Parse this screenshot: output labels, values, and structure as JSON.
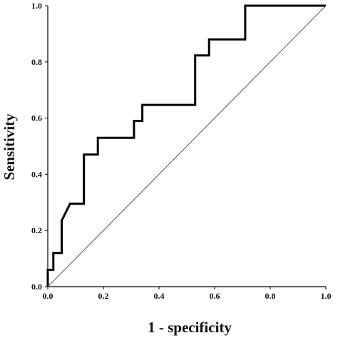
{
  "chart_data": {
    "type": "line",
    "title": "",
    "xlabel": "1 - specificity",
    "ylabel": "Sensitivity",
    "xlim": [
      0,
      1
    ],
    "ylim": [
      0,
      1
    ],
    "x_ticks": [
      "0.0",
      "0.2",
      "0.4",
      "0.6",
      "0.8",
      "1.0"
    ],
    "y_ticks": [
      "0.0",
      "0.2",
      "0.4",
      "0.6",
      "0.8",
      "1.0"
    ],
    "grid": false,
    "legend": "none",
    "series": [
      {
        "style": "step",
        "color": "#000000",
        "x": [
          0.0,
          0.0,
          0.02,
          0.02,
          0.05,
          0.05,
          0.08,
          0.08,
          0.13,
          0.13,
          0.18,
          0.18,
          0.31,
          0.31,
          0.34,
          0.34,
          0.53,
          0.53,
          0.58,
          0.58,
          0.71,
          0.71,
          1.0
        ],
        "y": [
          0.0,
          0.06,
          0.06,
          0.12,
          0.12,
          0.235,
          0.295,
          0.295,
          0.295,
          0.47,
          0.47,
          0.53,
          0.53,
          0.59,
          0.59,
          0.647,
          0.647,
          0.823,
          0.823,
          0.88,
          0.88,
          1.0,
          1.0
        ]
      },
      {
        "style": "reference",
        "color": "#555555",
        "x": [
          0,
          1
        ],
        "y": [
          0,
          1
        ]
      }
    ]
  }
}
